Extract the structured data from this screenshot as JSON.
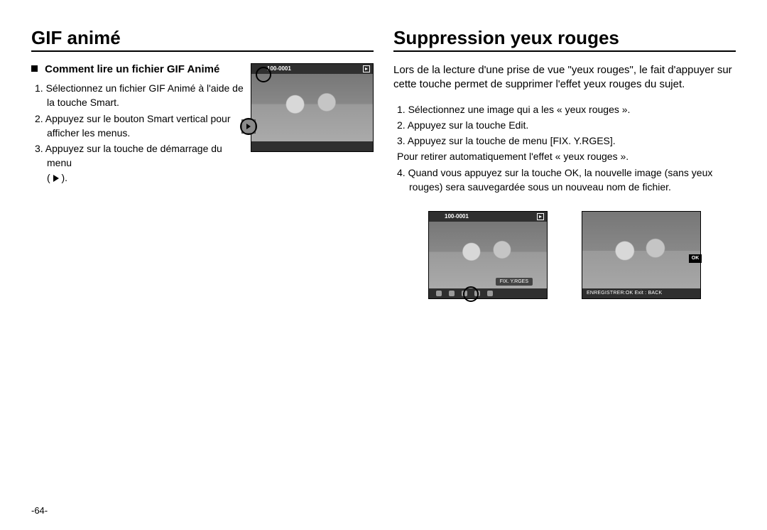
{
  "page_number": "-64-",
  "left": {
    "title": "GIF animé",
    "subheading": "Comment lire un fichier GIF Animé",
    "steps": [
      "1. Sélectionnez un fichier GIF Animé à l'aide de la touche Smart.",
      "2. Appuyez sur le bouton Smart vertical pour afficher les menus.",
      "3. Appuyez sur la touche de démarrage du menu"
    ],
    "step3_suffix_open": "( ",
    "step3_suffix_close": " ).",
    "thumb": {
      "file_label": "100-0001"
    }
  },
  "right": {
    "title": "Suppression yeux rouges",
    "intro": "Lors de la lecture d'une prise de vue \"yeux rouges\", le fait d'appuyer sur cette touche permet de supprimer l'effet yeux rouges du sujet.",
    "steps": [
      "1. Sélectionnez une image qui a les « yeux rouges ».",
      "2. Appuyez sur la touche Edit.",
      "3. Appuyez sur la touche de menu [FIX. Y.RGES].",
      "Pour retirer automatiquement l'effet « yeux rouges ».",
      "4. Quand vous appuyez sur la touche OK, la nouvelle image (sans yeux rouges) sera sauvegardée sous un nouveau nom de fichier."
    ],
    "thumb1": {
      "file_label": "100-0001",
      "menu_label": "FIX. Y.RGES"
    },
    "thumb2": {
      "ok_label": "OK",
      "footer": "ENREGISTRER:OK   Exit : BACK"
    }
  }
}
